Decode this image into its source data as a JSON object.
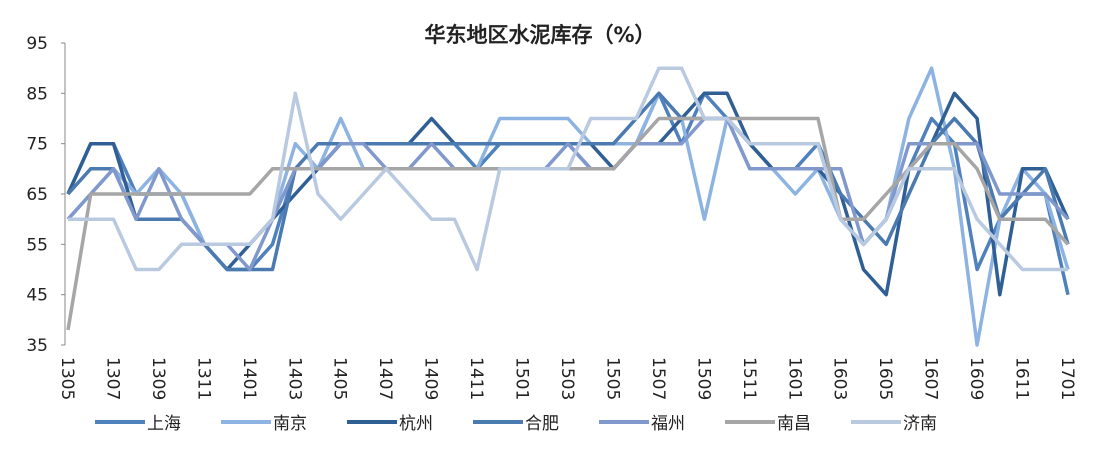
{
  "chart_data": {
    "type": "line",
    "title": "华东地区水泥库存（%）",
    "categories": [
      "1305",
      null,
      "1307",
      null,
      "1309",
      null,
      "1311",
      null,
      "1401",
      null,
      "1403",
      null,
      "1405",
      null,
      "1407",
      null,
      "1409",
      null,
      "1411",
      null,
      "1501",
      null,
      "1503",
      null,
      "1505",
      null,
      "1507",
      null,
      "1509",
      null,
      "1511",
      null,
      "1601",
      null,
      "1603",
      null,
      "1605",
      null,
      "1607",
      null,
      "1609",
      null,
      "1611",
      null,
      "1701"
    ],
    "series": [
      {
        "name": "上海",
        "color": "#4f81bd",
        "values": [
          65,
          75,
          75,
          65,
          65,
          65,
          55,
          50,
          50,
          55,
          70,
          70,
          75,
          75,
          75,
          75,
          75,
          75,
          70,
          75,
          75,
          75,
          75,
          70,
          70,
          75,
          85,
          75,
          85,
          80,
          75,
          70,
          70,
          75,
          60,
          55,
          60,
          70,
          80,
          75,
          50,
          60,
          65,
          65,
          45
        ]
      },
      {
        "name": "南京",
        "color": "#8db3e2",
        "values": [
          60,
          65,
          70,
          65,
          70,
          65,
          55,
          55,
          55,
          60,
          75,
          70,
          80,
          70,
          70,
          70,
          70,
          70,
          70,
          80,
          80,
          80,
          80,
          75,
          75,
          75,
          85,
          80,
          60,
          80,
          70,
          70,
          65,
          70,
          60,
          55,
          60,
          80,
          90,
          70,
          35,
          60,
          70,
          65,
          50
        ]
      },
      {
        "name": "杭州",
        "color": "#2f5f95",
        "values": [
          65,
          75,
          75,
          60,
          60,
          60,
          55,
          50,
          55,
          60,
          65,
          70,
          75,
          75,
          75,
          75,
          80,
          75,
          75,
          75,
          75,
          75,
          75,
          75,
          70,
          75,
          75,
          80,
          85,
          85,
          75,
          70,
          70,
          70,
          65,
          50,
          45,
          70,
          75,
          85,
          80,
          45,
          70,
          70,
          60
        ]
      },
      {
        "name": "合肥",
        "color": "#4a7ab0",
        "values": [
          65,
          70,
          70,
          60,
          60,
          60,
          55,
          50,
          50,
          50,
          70,
          75,
          75,
          75,
          75,
          75,
          75,
          75,
          75,
          75,
          75,
          75,
          75,
          75,
          75,
          80,
          85,
          80,
          80,
          80,
          75,
          75,
          75,
          75,
          65,
          60,
          55,
          65,
          75,
          80,
          75,
          60,
          65,
          70,
          55
        ]
      },
      {
        "name": "福州",
        "color": "#8098cc",
        "values": [
          60,
          65,
          70,
          60,
          70,
          60,
          55,
          55,
          50,
          60,
          70,
          70,
          75,
          75,
          70,
          70,
          75,
          70,
          70,
          70,
          70,
          70,
          75,
          70,
          70,
          75,
          75,
          75,
          80,
          80,
          70,
          70,
          70,
          70,
          70,
          55,
          60,
          75,
          75,
          75,
          75,
          65,
          65,
          65,
          60
        ]
      },
      {
        "name": "南昌",
        "color": "#a6a6a6",
        "values": [
          38,
          65,
          65,
          65,
          65,
          65,
          65,
          65,
          65,
          70,
          70,
          70,
          70,
          70,
          70,
          70,
          70,
          70,
          70,
          70,
          70,
          70,
          70,
          70,
          70,
          75,
          80,
          80,
          80,
          80,
          80,
          80,
          80,
          80,
          60,
          60,
          65,
          70,
          75,
          75,
          70,
          60,
          60,
          60,
          55
        ]
      },
      {
        "name": "济南",
        "color": "#b9c9e0",
        "values": [
          60,
          60,
          60,
          50,
          50,
          55,
          55,
          55,
          55,
          60,
          85,
          65,
          60,
          65,
          70,
          65,
          60,
          60,
          50,
          70,
          70,
          70,
          70,
          80,
          80,
          80,
          90,
          90,
          80,
          80,
          75,
          75,
          75,
          75,
          60,
          55,
          60,
          70,
          70,
          70,
          60,
          55,
          50,
          50,
          50
        ]
      }
    ],
    "ylim": [
      35,
      95
    ],
    "yticks": [
      35,
      45,
      55,
      65,
      75,
      85,
      95
    ],
    "legend": "bottom"
  }
}
